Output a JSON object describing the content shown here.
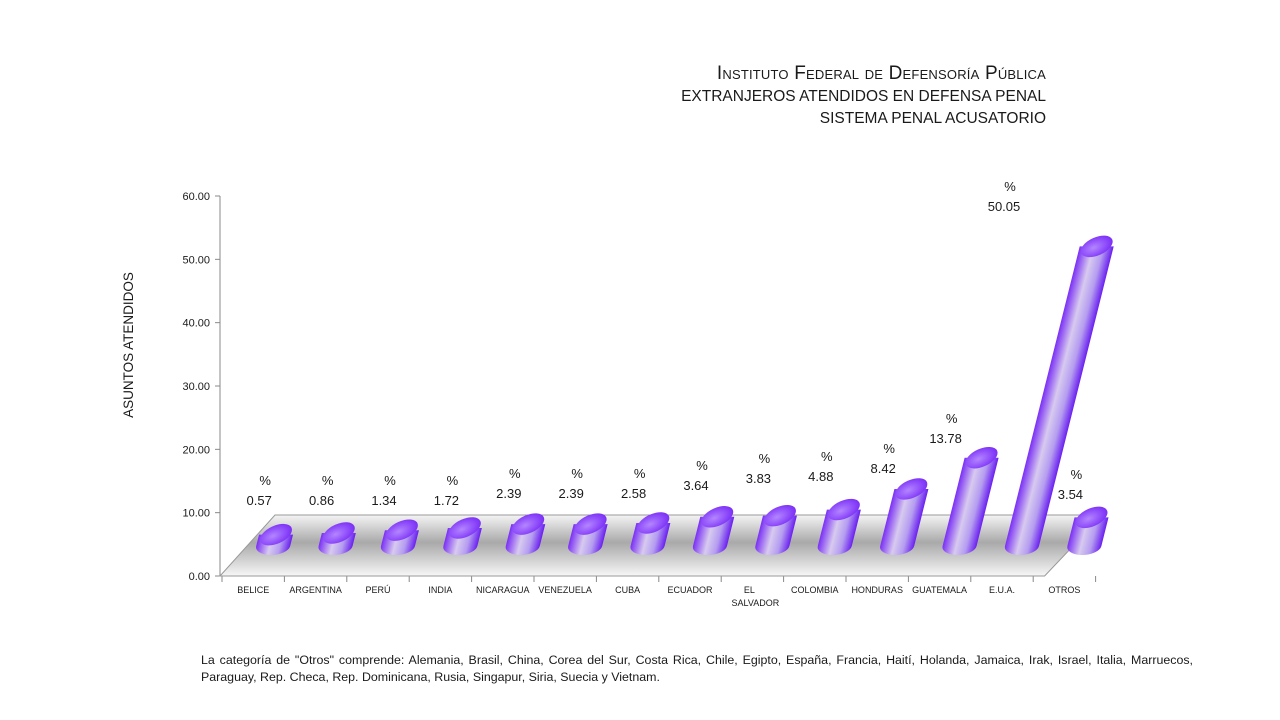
{
  "title": {
    "main": "Instituto Federal de Defensoría Pública",
    "line2": "EXTRANJEROS ATENDIDOS EN DEFENSA PENAL",
    "line3": "SISTEMA PENAL ACUSATORIO"
  },
  "footnote": "La categoría de \"Otros\" comprende:  Alemania, Brasil, China, Corea del Sur, Costa Rica, Chile, Egipto, España,  Francia, Haití, Holanda, Jamaica, Irak, Israel, Italia, Marruecos, Paraguay, Rep. Checa, Rep. Dominicana, Rusia, Singapur, Siria, Suecia y Vietnam.",
  "colors": {
    "bar_dark": "#7b2ff7",
    "bar_light": "#d8ccf0",
    "bar_top": "#8f4cff",
    "floor": "#bdbdbd",
    "axis": "#888888"
  },
  "chart_data": {
    "type": "bar",
    "style": "3d-cylinder",
    "categories": [
      "BELICE",
      "ARGENTINA",
      "PERÚ",
      "INDIA",
      "NICARAGUA",
      "VENEZUELA",
      "CUBA",
      "ECUADOR",
      "EL SALVADOR",
      "COLOMBIA",
      "HONDURAS",
      "GUATEMALA",
      "E.U.A.",
      "OTROS"
    ],
    "values": [
      0.57,
      0.86,
      1.34,
      1.72,
      2.39,
      2.39,
      2.58,
      3.64,
      3.83,
      4.88,
      8.42,
      13.78,
      50.05,
      3.54
    ],
    "data_label_prefix": "%",
    "ylabel": "ASUNTOS ATENDIDOS",
    "xlabel": "",
    "ylim": [
      0,
      60
    ],
    "yticks": [
      "0.00",
      "10.00",
      "20.00",
      "30.00",
      "40.00",
      "50.00",
      "60.00"
    ],
    "legend": "none",
    "grid": false
  }
}
